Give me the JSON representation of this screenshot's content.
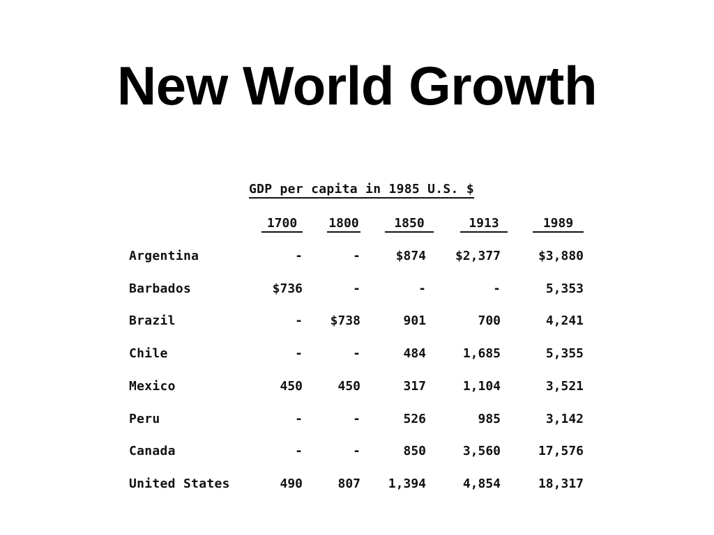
{
  "title": "New World Growth",
  "table": {
    "caption": "GDP per capita in 1985 U.S. $",
    "columns": [
      "1700",
      "1800",
      "1850",
      "1913",
      "1989"
    ],
    "rows": [
      {
        "country": "Argentina",
        "values": [
          "-",
          "-",
          "$874",
          "$2,377",
          "$3,880"
        ]
      },
      {
        "country": "Barbados",
        "values": [
          "$736",
          "-",
          "-",
          "-",
          "5,353"
        ]
      },
      {
        "country": "Brazil",
        "values": [
          "-",
          "$738",
          "901",
          "700",
          "4,241"
        ]
      },
      {
        "country": "Chile",
        "values": [
          "-",
          "-",
          "484",
          "1,685",
          "5,355"
        ]
      },
      {
        "country": "Mexico",
        "values": [
          "450",
          "450",
          "317",
          "1,104",
          "3,521"
        ]
      },
      {
        "country": "Peru",
        "values": [
          "-",
          "-",
          "526",
          "985",
          "3,142"
        ]
      },
      {
        "country": "Canada",
        "values": [
          "-",
          "-",
          "850",
          "3,560",
          "17,576"
        ]
      },
      {
        "country": "United States",
        "values": [
          "490",
          "807",
          "1,394",
          "4,854",
          "18,317"
        ]
      }
    ]
  }
}
